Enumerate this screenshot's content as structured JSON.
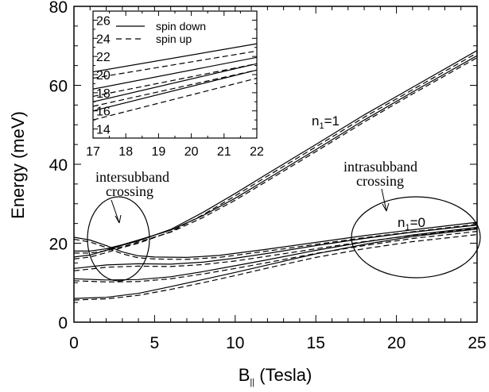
{
  "chart_data": {
    "type": "line",
    "xlabel_main": "B",
    "xlabel_sub": "||",
    "xlabel_rest": " (Tesla)",
    "ylabel": "Energy (meV)",
    "xlim": [
      0,
      25
    ],
    "ylim": [
      0,
      80
    ],
    "xticks": [
      0,
      5,
      10,
      15,
      20,
      25
    ],
    "yticks": [
      0,
      20,
      40,
      60,
      80
    ],
    "series": [
      {
        "name": "spin down",
        "style": "solid",
        "points": [
          [
            0,
            6
          ],
          [
            2,
            6.3
          ],
          [
            4,
            7.3
          ],
          [
            6,
            9
          ],
          [
            8,
            10.8
          ],
          [
            10,
            12.6
          ],
          [
            12,
            14.5
          ],
          [
            15,
            17.3
          ],
          [
            18,
            19.7
          ],
          [
            21,
            21.7
          ],
          [
            25,
            23.6
          ]
        ]
      },
      {
        "name": "spin up",
        "style": "dashed",
        "points": [
          [
            0,
            5.6
          ],
          [
            2,
            5.9
          ],
          [
            4,
            6.8
          ],
          [
            6,
            8.3
          ],
          [
            8,
            10
          ],
          [
            10,
            11.8
          ],
          [
            12,
            13.7
          ],
          [
            15,
            16.4
          ],
          [
            18,
            18.6
          ],
          [
            21,
            20.4
          ],
          [
            25,
            22.2
          ]
        ]
      },
      {
        "name": "spin down",
        "style": "solid",
        "points": [
          [
            0,
            11
          ],
          [
            2,
            10.7
          ],
          [
            4,
            10.8
          ],
          [
            6,
            11.5
          ],
          [
            8,
            12.8
          ],
          [
            10,
            14.3
          ],
          [
            12,
            15.8
          ],
          [
            15,
            18.2
          ],
          [
            18,
            20.3
          ],
          [
            21,
            22.1
          ],
          [
            25,
            24
          ]
        ]
      },
      {
        "name": "spin up",
        "style": "dashed",
        "points": [
          [
            0,
            10.5
          ],
          [
            2,
            10.2
          ],
          [
            4,
            10.3
          ],
          [
            6,
            11
          ],
          [
            8,
            12.2
          ],
          [
            10,
            13.6
          ],
          [
            12,
            15.1
          ],
          [
            15,
            17.4
          ],
          [
            18,
            19.4
          ],
          [
            21,
            21.2
          ],
          [
            25,
            23
          ]
        ]
      },
      {
        "name": "spin down",
        "style": "solid",
        "points": [
          [
            0,
            13.6
          ],
          [
            2,
            14.5
          ],
          [
            4,
            14.8
          ],
          [
            6,
            14.7
          ],
          [
            8,
            15.2
          ],
          [
            10,
            16.2
          ],
          [
            12,
            17.4
          ],
          [
            15,
            19.4
          ],
          [
            18,
            21.2
          ],
          [
            21,
            22.8
          ],
          [
            25,
            24.6
          ]
        ]
      },
      {
        "name": "spin up",
        "style": "dashed",
        "points": [
          [
            0,
            13
          ],
          [
            2,
            13.9
          ],
          [
            4,
            14.2
          ],
          [
            6,
            14.1
          ],
          [
            8,
            14.6
          ],
          [
            10,
            15.5
          ],
          [
            12,
            16.7
          ],
          [
            15,
            18.6
          ],
          [
            18,
            20.4
          ],
          [
            21,
            22
          ],
          [
            25,
            23.8
          ]
        ]
      },
      {
        "name": "spin down",
        "style": "solid",
        "points": [
          [
            0,
            21.5
          ],
          [
            1,
            20.8
          ],
          [
            2,
            19.4
          ],
          [
            3,
            17.8
          ],
          [
            4,
            16.8
          ],
          [
            5,
            16.5
          ],
          [
            7,
            16.4
          ],
          [
            9,
            16.9
          ],
          [
            12,
            18.5
          ],
          [
            15,
            20.2
          ],
          [
            18,
            21.9
          ],
          [
            21,
            23.4
          ],
          [
            25,
            25.3
          ]
        ]
      },
      {
        "name": "spin up",
        "style": "dashed",
        "points": [
          [
            0,
            21
          ],
          [
            1,
            20.3
          ],
          [
            2,
            18.9
          ],
          [
            3,
            17.3
          ],
          [
            4,
            16.3
          ],
          [
            5,
            16
          ],
          [
            7,
            15.9
          ],
          [
            9,
            16.4
          ],
          [
            12,
            18
          ],
          [
            15,
            19.7
          ],
          [
            18,
            21.4
          ],
          [
            21,
            22.9
          ],
          [
            25,
            24.8
          ]
        ]
      },
      {
        "name": "spin down",
        "style": "solid",
        "points": [
          [
            0,
            16.5
          ],
          [
            1,
            17
          ],
          [
            2,
            18.2
          ],
          [
            3,
            19.5
          ],
          [
            4,
            20.6
          ],
          [
            6,
            23.5
          ],
          [
            8,
            27.8
          ],
          [
            10,
            32.6
          ],
          [
            12,
            37.6
          ],
          [
            15,
            45
          ],
          [
            18,
            52.5
          ],
          [
            21,
            59.5
          ],
          [
            25,
            68.8
          ]
        ]
      },
      {
        "name": "spin up",
        "style": "dashed",
        "points": [
          [
            0,
            16
          ],
          [
            1,
            16.5
          ],
          [
            2,
            17.6
          ],
          [
            3,
            18.9
          ],
          [
            4,
            20
          ],
          [
            6,
            22.9
          ],
          [
            8,
            27.2
          ],
          [
            10,
            32
          ],
          [
            12,
            37
          ],
          [
            15,
            44.4
          ],
          [
            18,
            51.9
          ],
          [
            21,
            58.9
          ],
          [
            25,
            68.2
          ]
        ]
      },
      {
        "name": "spin down",
        "style": "solid",
        "points": [
          [
            0,
            18
          ],
          [
            1,
            18
          ],
          [
            2,
            18.6
          ],
          [
            3,
            19.6
          ],
          [
            4,
            20.8
          ],
          [
            6,
            23.3
          ],
          [
            8,
            27
          ],
          [
            10,
            31.4
          ],
          [
            12,
            36.3
          ],
          [
            15,
            43.7
          ],
          [
            18,
            51.2
          ],
          [
            21,
            58.3
          ],
          [
            25,
            67.5
          ]
        ]
      },
      {
        "name": "spin up",
        "style": "dashed",
        "points": [
          [
            0,
            17.5
          ],
          [
            1,
            17.5
          ],
          [
            2,
            18.1
          ],
          [
            3,
            19.1
          ],
          [
            4,
            20.3
          ],
          [
            6,
            22.8
          ],
          [
            8,
            26.5
          ],
          [
            10,
            30.9
          ],
          [
            12,
            35.8
          ],
          [
            15,
            43.2
          ],
          [
            18,
            50.7
          ],
          [
            21,
            57.8
          ],
          [
            25,
            67
          ]
        ]
      }
    ],
    "inset": {
      "xlim": [
        17,
        22
      ],
      "ylim": [
        13,
        27
      ],
      "xticks": [
        17,
        18,
        19,
        20,
        21,
        22
      ],
      "yticks": [
        14,
        16,
        18,
        20,
        22,
        24,
        26
      ],
      "legend": [
        {
          "label": "spin down",
          "style": "solid"
        },
        {
          "label": "spin up",
          "style": "dashed"
        }
      ],
      "series": [
        {
          "style": "solid",
          "y0": 20.3,
          "y1": 23.4
        },
        {
          "style": "dashed",
          "y0": 19.6,
          "y1": 22.6
        },
        {
          "style": "solid",
          "y0": 18.4,
          "y1": 21.9
        },
        {
          "style": "dashed",
          "y0": 17.6,
          "y1": 21.2
        },
        {
          "style": "solid",
          "y0": 17.0,
          "y1": 21.2
        },
        {
          "style": "dashed",
          "y0": 16.5,
          "y1": 20.5
        },
        {
          "style": "solid",
          "y0": 16.0,
          "y1": 20.5
        },
        {
          "style": "dashed",
          "y0": 15.0,
          "y1": 19.6
        }
      ]
    },
    "annotations": {
      "intersubband_line1": "intersubband",
      "intersubband_line2": "crossing",
      "intrasubband_line1": "intrasubband",
      "intrasubband_line2": "crossing",
      "n1_upper": "n",
      "n1_upper_sub": "1",
      "n1_upper_val": "=1",
      "n1_lower": "n",
      "n1_lower_sub": "1",
      "n1_lower_val": "=0"
    }
  }
}
